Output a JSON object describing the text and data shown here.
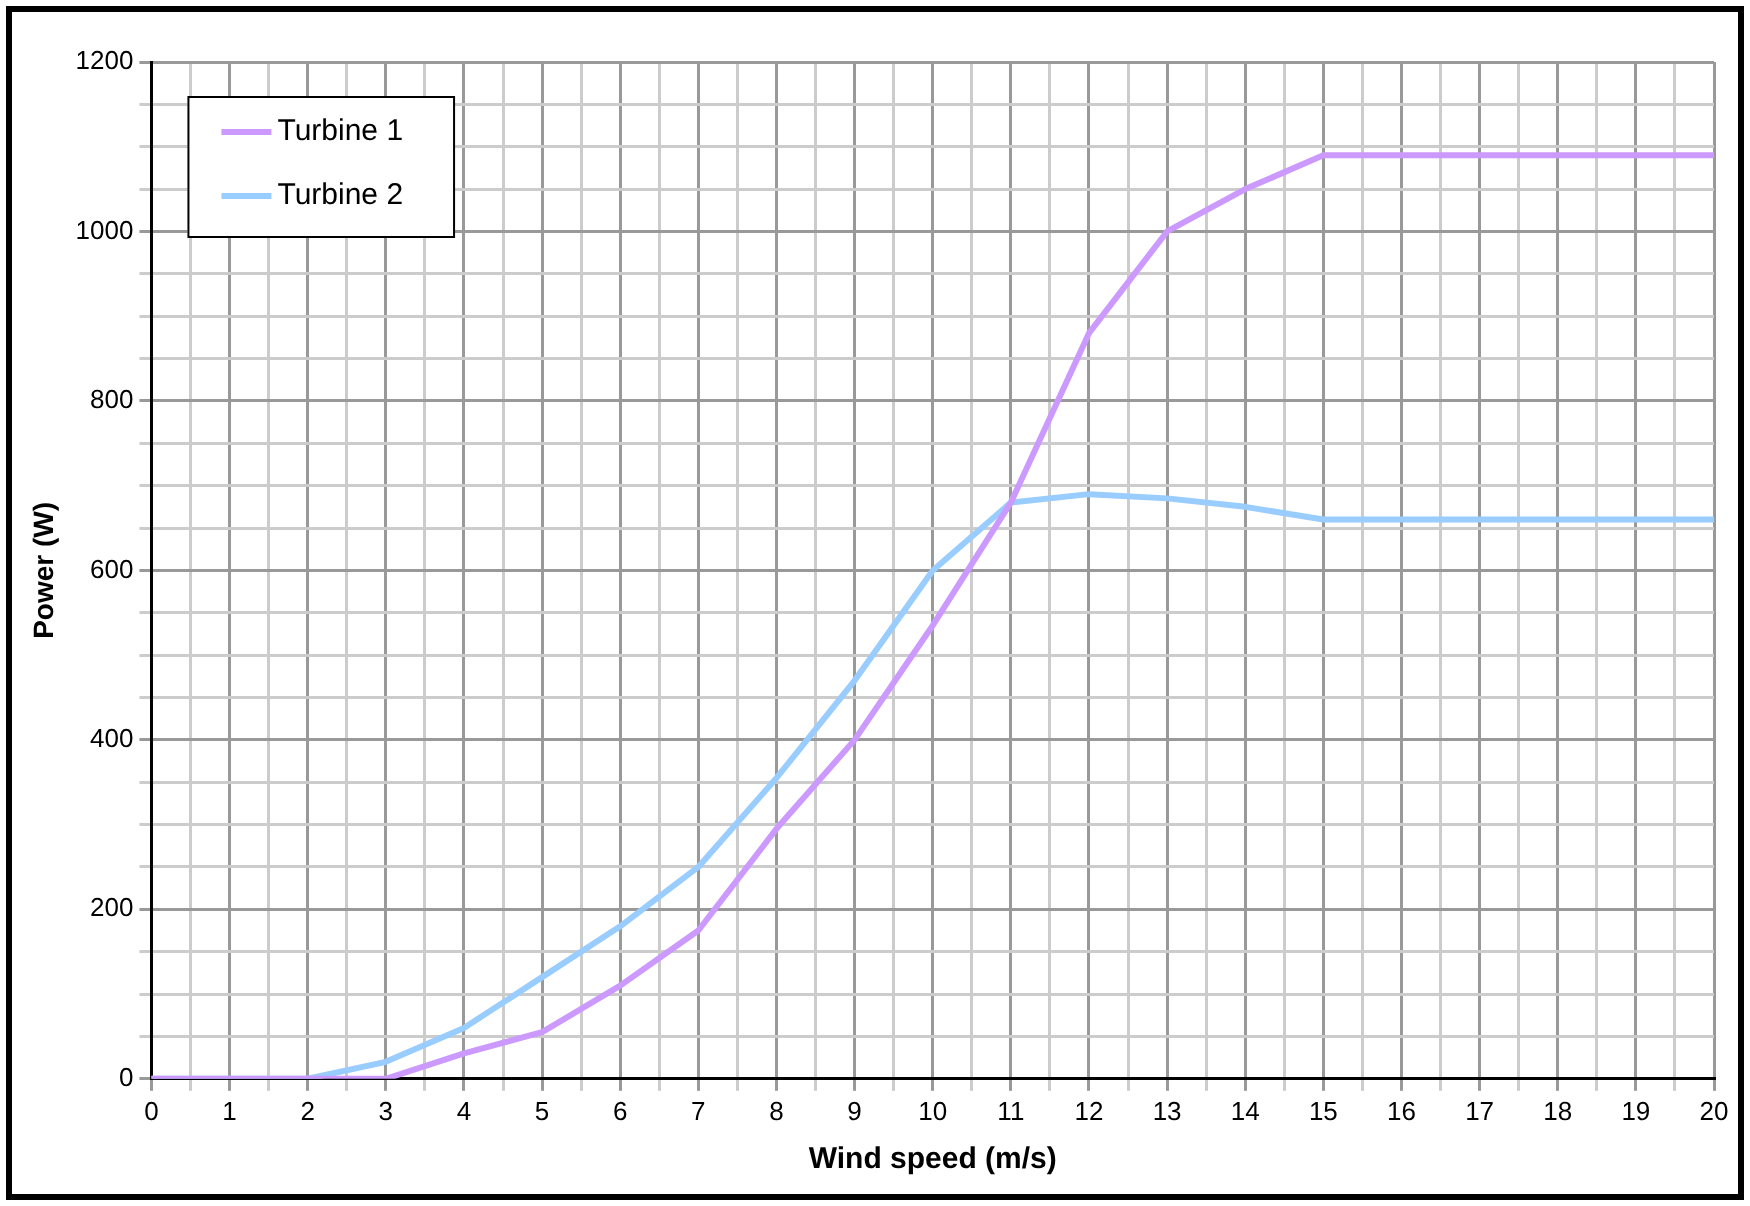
{
  "chart_data": {
    "type": "line",
    "xlabel": "Wind speed (m/s)",
    "ylabel": "Power (W)",
    "x": [
      0,
      1,
      2,
      3,
      4,
      5,
      6,
      7,
      8,
      9,
      10,
      11,
      12,
      13,
      14,
      15,
      16,
      17,
      18,
      19,
      20
    ],
    "series": [
      {
        "name": "Turbine 1",
        "color": "#cc99ff",
        "values": [
          0,
          0,
          0,
          0,
          30,
          55,
          110,
          175,
          295,
          400,
          535,
          680,
          880,
          1000,
          1050,
          1090,
          1090,
          1090,
          1090,
          1090,
          1090
        ]
      },
      {
        "name": "Turbine 2",
        "color": "#99ccff",
        "values": [
          0,
          0,
          0,
          20,
          60,
          120,
          180,
          250,
          355,
          470,
          600,
          680,
          690,
          685,
          675,
          660,
          660,
          660,
          660,
          660,
          660
        ]
      }
    ],
    "xlim": [
      0,
      20
    ],
    "xticks": [
      0,
      {
        "value": 0.5,
        "label": null
      },
      1,
      {
        "value": 1.5,
        "label": null
      },
      2,
      {
        "value": 2.5,
        "label": null
      },
      3,
      {
        "value": 3.5,
        "label": null
      },
      4,
      {
        "value": 4.5,
        "label": null
      },
      5,
      {
        "value": 5.5,
        "label": null
      },
      6,
      {
        "value": 6.5,
        "label": null
      },
      7,
      {
        "value": 7.5,
        "label": null
      },
      8,
      {
        "value": 8.5,
        "label": null
      },
      9,
      {
        "value": 9.5,
        "label": null
      },
      10,
      {
        "value": 10.5,
        "label": null
      },
      11,
      {
        "value": 11.5,
        "label": null
      },
      12,
      {
        "value": 12.5,
        "label": null
      },
      13,
      {
        "value": 13.5,
        "label": null
      },
      14,
      {
        "value": 14.5,
        "label": null
      },
      15,
      {
        "value": 15.5,
        "label": null
      },
      16,
      {
        "value": 16.5,
        "label": null
      },
      17,
      {
        "value": 17.5,
        "label": null
      },
      18,
      {
        "value": 18.5,
        "label": null
      },
      19,
      {
        "value": 19.5,
        "label": null
      },
      20
    ],
    "ylim": [
      0,
      1200
    ],
    "yticks": [
      0,
      {
        "value": 50,
        "label": null
      },
      {
        "value": 100,
        "label": null
      },
      {
        "value": 150,
        "label": null
      },
      200,
      {
        "value": 250,
        "label": null
      },
      {
        "value": 300,
        "label": null
      },
      {
        "value": 350,
        "label": null
      },
      400,
      {
        "value": 450,
        "label": null
      },
      {
        "value": 500,
        "label": null
      },
      {
        "value": 550,
        "label": null
      },
      600,
      {
        "value": 650,
        "label": null
      },
      {
        "value": 700,
        "label": null
      },
      {
        "value": 750,
        "label": null
      },
      800,
      {
        "value": 850,
        "label": null
      },
      {
        "value": 900,
        "label": null
      },
      {
        "value": 950,
        "label": null
      },
      1000,
      {
        "value": 1050,
        "label": null
      },
      {
        "value": 1100,
        "label": null
      },
      {
        "value": 1150,
        "label": null
      },
      1200
    ],
    "grid": true,
    "legend": "top left",
    "marker": "none",
    "line_style": "solid"
  }
}
